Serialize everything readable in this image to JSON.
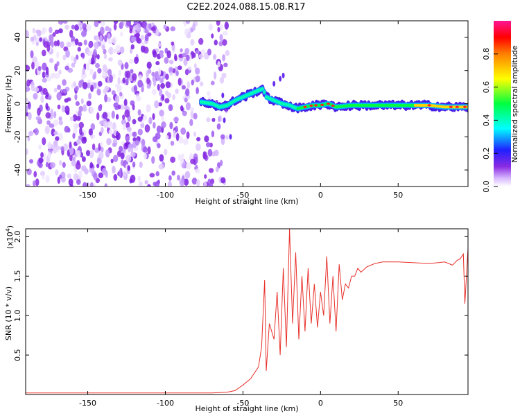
{
  "title": "C2E2.2024.088.15.08.R17",
  "chart_data": [
    {
      "type": "heatmap",
      "xlabel": "Height of straight line (km)",
      "ylabel": "Frequency (Hz)",
      "xlim": [
        -190,
        95
      ],
      "ylim": [
        -50,
        50
      ],
      "xticks": [
        -150,
        -100,
        -50,
        0,
        50
      ],
      "xtick_labels": [
        "-150",
        "-100",
        "-50",
        "0",
        "50"
      ],
      "yticks": [
        -40,
        -20,
        0,
        20,
        40
      ],
      "ytick_labels": [
        "-40",
        "-20",
        "0",
        "20",
        "40"
      ],
      "colorbar": {
        "label": "Normalized spectral amplitude",
        "range": [
          0,
          1
        ],
        "ticks": [
          0.0,
          0.2,
          0.4,
          0.6,
          0.8
        ],
        "tick_labels": [
          "0.0",
          "0.2",
          "0.4",
          "0.6",
          "0.8"
        ],
        "colors": [
          "#ffffff",
          "#8a2be2",
          "#0000ff",
          "#00ffff",
          "#00ff00",
          "#ffff00",
          "#ff8000",
          "#ff0000",
          "#ff1493"
        ]
      },
      "noise_region_x": [
        -190,
        -60
      ],
      "signal_track": {
        "x": [
          -77,
          -70,
          -65,
          -60,
          -55,
          -50,
          -45,
          -40,
          -37,
          -35,
          -30,
          -25,
          -20,
          -15,
          -10,
          -5,
          0,
          5,
          10,
          20,
          30,
          40,
          50,
          60,
          70,
          80,
          90,
          95
        ],
        "y": [
          1,
          0,
          -2,
          -1,
          2,
          4,
          6,
          8,
          9,
          4,
          2,
          0,
          -1,
          -3,
          -2,
          -1,
          -1,
          0,
          -2,
          -1,
          -1,
          -1,
          -1,
          -1,
          -1,
          -2,
          -2,
          -2
        ]
      }
    },
    {
      "type": "line",
      "xlabel": "Height of straight line (km)",
      "ylabel": "SNR (10 * v/v)",
      "scale_label": "(x10",
      "scale_exp": "4",
      "scale_close": ")",
      "xlim": [
        -190,
        95
      ],
      "ylim": [
        0,
        2.1
      ],
      "xticks": [
        -150,
        -100,
        -50,
        0,
        50
      ],
      "xtick_labels": [
        "-150",
        "-100",
        "-50",
        "0",
        "50"
      ],
      "yticks": [
        0.5,
        1.0,
        1.5,
        2.0
      ],
      "ytick_labels": [
        "0.5",
        "1.0",
        "1.5",
        "2.0"
      ],
      "series": [
        {
          "name": "SNR",
          "color": "#e8302a",
          "x": [
            -190,
            -170,
            -150,
            -130,
            -110,
            -90,
            -70,
            -60,
            -55,
            -50,
            -45,
            -40,
            -38,
            -36,
            -35,
            -33,
            -30,
            -28,
            -26,
            -24,
            -22,
            -20,
            -18,
            -16,
            -14,
            -12,
            -10,
            -8,
            -6,
            -4,
            -2,
            0,
            2,
            4,
            6,
            8,
            10,
            12,
            14,
            16,
            18,
            20,
            22,
            24,
            26,
            30,
            35,
            40,
            50,
            60,
            70,
            80,
            85,
            88,
            90,
            92,
            93,
            95
          ],
          "y": [
            0.02,
            0.02,
            0.02,
            0.02,
            0.02,
            0.02,
            0.02,
            0.03,
            0.05,
            0.12,
            0.2,
            0.35,
            0.6,
            1.45,
            0.3,
            0.9,
            0.7,
            1.3,
            0.5,
            1.6,
            0.6,
            2.1,
            0.9,
            1.8,
            0.7,
            1.5,
            0.8,
            1.6,
            0.9,
            1.4,
            0.85,
            1.3,
            1.0,
            1.75,
            0.9,
            1.5,
            0.8,
            1.65,
            1.2,
            1.4,
            1.35,
            1.5,
            1.5,
            1.6,
            1.55,
            1.62,
            1.66,
            1.68,
            1.68,
            1.67,
            1.66,
            1.68,
            1.64,
            1.7,
            1.72,
            1.78,
            1.15,
            1.85
          ]
        }
      ]
    }
  ]
}
